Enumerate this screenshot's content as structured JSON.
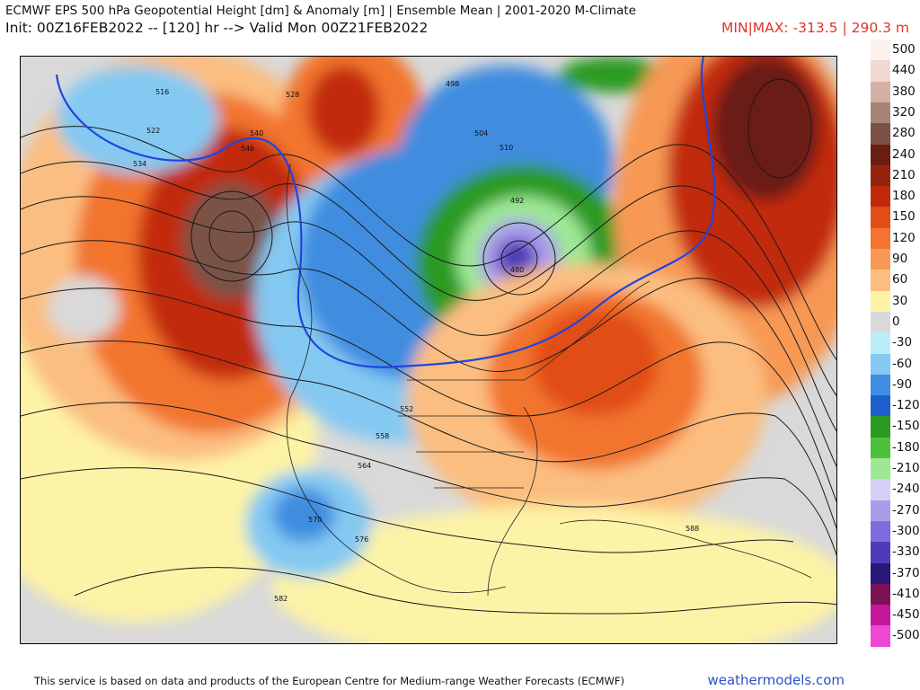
{
  "header": {
    "title_line1": "ECMWF EPS 500 hPa Geopotential Height [dm] & Anomaly [m] | Ensemble Mean | 2001-2020 M-Climate",
    "title_line2": "Init: 00Z16FEB2022 -- [120] hr --> Valid Mon 00Z21FEB2022",
    "minmax": "MIN|MAX: -313.5 | 290.3 m",
    "minmax_color": "#e0342a"
  },
  "map": {
    "contour_labels": [
      "516",
      "522",
      "528",
      "534",
      "540",
      "546",
      "552",
      "558",
      "564",
      "570",
      "576",
      "582",
      "588",
      "498",
      "504",
      "510",
      "492",
      "480"
    ]
  },
  "colorbar": {
    "entries": [
      {
        "label": "500",
        "color": "#fdf1ee"
      },
      {
        "label": "440",
        "color": "#f1d8d1"
      },
      {
        "label": "380",
        "color": "#d3b0a6"
      },
      {
        "label": "320",
        "color": "#a98375"
      },
      {
        "label": "280",
        "color": "#7a5247"
      },
      {
        "label": "240",
        "color": "#6b1d12"
      },
      {
        "label": "210",
        "color": "#94230f"
      },
      {
        "label": "180",
        "color": "#c2290c"
      },
      {
        "label": "150",
        "color": "#e14d18"
      },
      {
        "label": "120",
        "color": "#f2742f"
      },
      {
        "label": "90",
        "color": "#f79955"
      },
      {
        "label": "60",
        "color": "#fbbe80"
      },
      {
        "label": "30",
        "color": "#fdf3a6"
      },
      {
        "label": "0",
        "color": "#d9d9d9"
      },
      {
        "label": "-30",
        "color": "#bcecf7"
      },
      {
        "label": "-60",
        "color": "#84c9f2"
      },
      {
        "label": "-90",
        "color": "#3f8de0"
      },
      {
        "label": "-120",
        "color": "#1c5fcc"
      },
      {
        "label": "-150",
        "color": "#2c9a22"
      },
      {
        "label": "-180",
        "color": "#4cc13d"
      },
      {
        "label": "-210",
        "color": "#9ee894"
      },
      {
        "label": "-240",
        "color": "#d4d0f7"
      },
      {
        "label": "-270",
        "color": "#aa9ceb"
      },
      {
        "label": "-300",
        "color": "#7f6ade"
      },
      {
        "label": "-330",
        "color": "#4f3bba"
      },
      {
        "label": "-370",
        "color": "#2b1778"
      },
      {
        "label": "-410",
        "color": "#7a1155"
      },
      {
        "label": "-450",
        "color": "#c4179b"
      },
      {
        "label": "-500",
        "color": "#ee47d4"
      }
    ]
  },
  "footer": {
    "credit": "This service is based on data and products of the European Centre for Medium-range Weather Forecasts (ECMWF)",
    "site": "weathermodels.com"
  }
}
